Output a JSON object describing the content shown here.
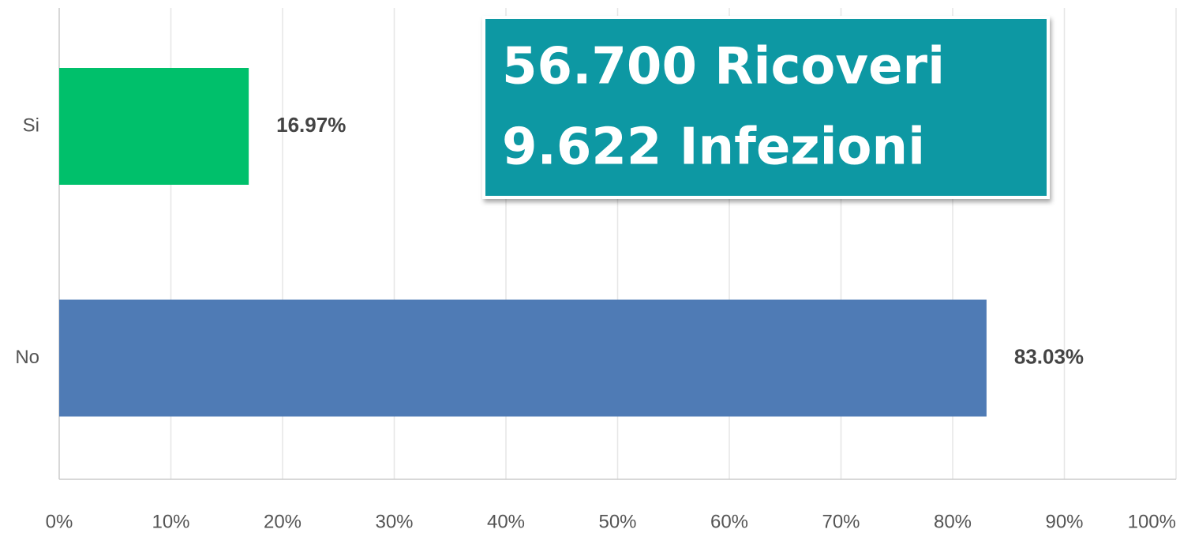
{
  "chart_data": {
    "type": "hbar",
    "categories": [
      "Si",
      "No"
    ],
    "values": [
      16.97,
      83.03
    ],
    "value_labels": [
      "16.97%",
      "83.03%"
    ],
    "colors": [
      "#00c06b",
      "#4f7bb5"
    ],
    "xlim": [
      0,
      100
    ],
    "xticks": [
      {
        "value": 0,
        "label": "0%"
      },
      {
        "value": 10,
        "label": "10%"
      },
      {
        "value": 20,
        "label": "20%"
      },
      {
        "value": 30,
        "label": "30%"
      },
      {
        "value": 40,
        "label": "40%"
      },
      {
        "value": 50,
        "label": "50%"
      },
      {
        "value": 60,
        "label": "60%"
      },
      {
        "value": 70,
        "label": "70%"
      },
      {
        "value": 80,
        "label": "80%"
      },
      {
        "value": 90,
        "label": "90%"
      },
      {
        "value": 100,
        "label": "100%"
      }
    ],
    "grid": true,
    "annotations": [
      "56.700 Ricoveri",
      "9.622 Infezioni"
    ]
  }
}
